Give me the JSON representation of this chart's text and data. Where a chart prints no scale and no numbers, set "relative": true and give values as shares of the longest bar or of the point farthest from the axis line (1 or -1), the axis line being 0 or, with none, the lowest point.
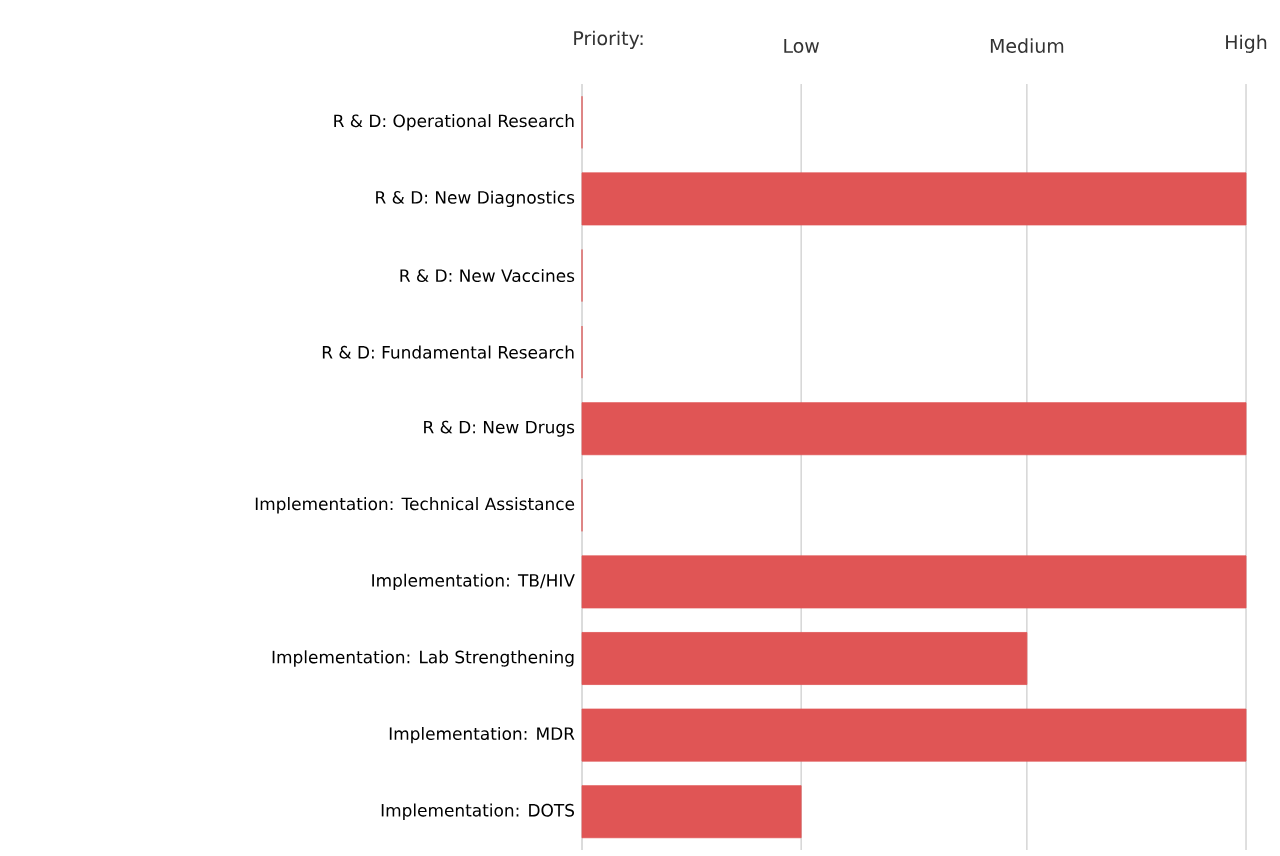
{
  "chart_data": {
    "type": "bar",
    "orientation": "horizontal",
    "relative": true,
    "xlabel": "Priority:",
    "categories": [
      "R & D: Operational Research",
      "R & D: New Diagnostics",
      "R & D: New Vaccines",
      "R & D: Fundamental Research",
      "R & D: New Drugs",
      "Implementation: Technical Assistance",
      "Implementation: TB/HIV",
      "Implementation: Lab Strengthening",
      "Implementation: MDR",
      "Implementation: DOTS"
    ],
    "values": [
      0,
      1,
      0,
      0,
      1,
      0,
      1,
      0.67,
      1,
      0.33
    ],
    "color": "#e05555",
    "ref_lines": [
      {
        "axis": "x",
        "value": 0.33,
        "label": "Low",
        "color": "#b0b0b0"
      },
      {
        "axis": "x",
        "value": 0.67,
        "label": "Medium",
        "color": "#b0b0b0"
      },
      {
        "axis": "x",
        "value": 1,
        "label": "High",
        "color": "#b0b0b0"
      }
    ]
  }
}
